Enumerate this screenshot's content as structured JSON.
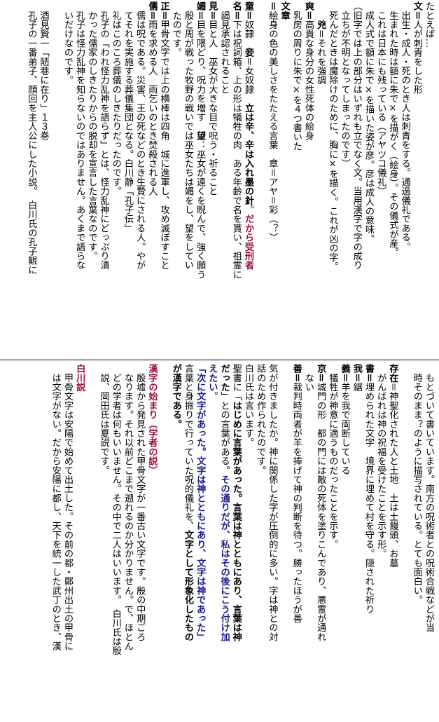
{
  "colors": {
    "accent_red": "#a0103c",
    "accent_blue": "#1c1c8c",
    "text": "#000000"
  },
  "top": [
    [
      {
        "t": "たとえば…"
      }
    ],
    [
      {
        "t": "文＝",
        "s": "b"
      },
      {
        "t": "人が刺青をした形"
      }
    ],
    [
      {
        "t": "　出生・成人・死のとき人は刺青をする。通過儀礼である。"
      }
    ],
    [
      {
        "t": "　生まれた時は額に朱で×を描がく（絵身）。その儀式が産。"
      }
    ],
    [
      {
        "t": "　これは日本にも残っている（アヤツコ儀礼）"
      }
    ],
    [
      {
        "t": "　成人式で額に朱で×を描いた姿が彦。彦は成人の意味。"
      }
    ],
    [
      {
        "t": "（旧字では上の部分はいずれも立でなく文。当用漢字で字の成り"
      }
    ],
    [
      {
        "t": "　立ちが不明となってしまったのです）"
      }
    ],
    [
      {
        "t": "　死んだときは魔除けのために、胸に×を描く。これが凶の字。"
      }
    ],
    [
      {
        "t": "　　兇",
        "s": "b"
      },
      {
        "t": "＝それを強調"
      }
    ],
    [
      {
        "t": "爽＝",
        "s": "b"
      },
      {
        "t": "高貴な身分の女性死体の絵身"
      }
    ],
    [
      {
        "t": "　乳房の周りに朱で×を４つ書いた"
      }
    ],
    [
      {
        "t": "文章",
        "s": "b"
      }
    ],
    [
      {
        "t": "＝",
        "s": "b"
      },
      {
        "t": "絵身の色の美しさをたたえる言葉　章＝アヤ＝彩（？）"
      }
    ],
    [
      {
        "t": ""
      }
    ],
    [
      {
        "t": "童＝",
        "s": "b"
      },
      {
        "t": "奴隷　"
      },
      {
        "t": "妾",
        "s": "b"
      },
      {
        "t": "＝女奴隷　"
      },
      {
        "t": "立は辛、辛は入れ墨の針",
        "s": "b"
      },
      {
        "t": "。"
      },
      {
        "t": "だから受刑者",
        "s": "red"
      }
    ],
    [
      {
        "t": "名＝",
        "s": "b"
      },
      {
        "t": "下は祝詞箱、上の形は犠牲の肉　ある年齢で名を貰い、祖霊に"
      }
    ],
    [
      {
        "t": "　謁見承認されること"
      }
    ],
    [
      {
        "t": "見＝",
        "s": "b"
      },
      {
        "t": "目と人　巫女が大きな目で呪う・祈ること"
      }
    ],
    [
      {
        "t": "媚＝",
        "s": "b"
      },
      {
        "t": "目を隈どり、呪力を増す　"
      },
      {
        "t": "望",
        "s": "b"
      },
      {
        "t": "：巫女が遠くを睨んで、強く願う"
      }
    ],
    [
      {
        "t": "　殷と周が戦った牧野の戦いでは巫女たちは媚をし、望をしてい"
      }
    ],
    [
      {
        "t": "　たのです。"
      }
    ],
    [
      {
        "t": "正＝",
        "s": "b"
      },
      {
        "t": "甲骨文字では上の横棒は四角　城に進軍し、攻め滅ぼすこと"
      }
    ],
    [
      {
        "t": "儒＝",
        "s": "b"
      },
      {
        "t": "雨を求める人　雨乞いのとき焚殺される人"
      }
    ],
    [
      {
        "t": "　儒は呪である。災害、王の死などのとき生贄にされる人。やが"
      }
    ],
    [
      {
        "t": "　てそれを実施する葬儀集団となる。白川静「孔子伝」"
      }
    ],
    [
      {
        "t": "　礼はこのころ葬儀のしきたりだったのです。"
      }
    ],
    [
      {
        "t": "　孔子の「われ怪力乱神を語らず」とは、怪力乱神にどっぷり漬"
      }
    ],
    [
      {
        "t": "　かった儒家のしきたりからの脱却を宣言した言葉なのです。"
      }
    ],
    [
      {
        "t": "　孔子は怪力乱神を知らないのではありません。あくまで語らな"
      }
    ],
    [
      {
        "t": "　いだけなのです。"
      }
    ],
    [
      {
        "t": ""
      }
    ],
    [
      {
        "t": "　酒見賢一「陋巷に在り」１３巻"
      }
    ],
    [
      {
        "t": "　孔子の一番弟子、顔回を主人公にした小説。　白川氏の孔子観に"
      }
    ]
  ],
  "bottom": [
    [
      {
        "t": "　もとづいて書いています。南方の呪術者との呪術合戦などが当"
      }
    ],
    [
      {
        "t": "　時そのまま？のように描写されている。とても面白い。"
      }
    ],
    [
      {
        "t": ""
      }
    ],
    [
      {
        "t": "存在",
        "s": "b"
      },
      {
        "t": "＝神聖化された人と土地　土は土饅頭、お墓"
      }
    ],
    [
      {
        "t": "　がんばれは神の祝福を受けたことを示す形。"
      }
    ],
    [
      {
        "t": "書＝",
        "s": "b"
      },
      {
        "t": "埋められた文字　境界に埋めて村を守る。隠された祈り"
      }
    ],
    [
      {
        "t": "我＝",
        "s": "b"
      },
      {
        "t": "鋸"
      }
    ],
    [
      {
        "t": "義＝",
        "s": "b"
      },
      {
        "t": "羊を我で両断している"
      }
    ],
    [
      {
        "t": "　犠牲が神意に適うものだったことを示す。"
      }
    ],
    [
      {
        "t": "京＝",
        "s": "b"
      },
      {
        "t": "城門の形　都の門には敵の死体を塗りこんであり、悪霊が通れ"
      }
    ],
    [
      {
        "t": "　ない"
      }
    ],
    [
      {
        "t": "善＝",
        "s": "b"
      },
      {
        "t": "裁判時両者が羊を捧げて神の判断を待つ。勝ったほうが善"
      }
    ],
    [
      {
        "t": ""
      }
    ],
    [
      {
        "t": "気が付きましたか。神に関係した字が圧倒的に多い。字は神との対"
      }
    ],
    [
      {
        "t": "話のため作られたのです。"
      }
    ],
    [
      {
        "t": "白川氏は言います。"
      }
    ],
    [
      {
        "t": "聖書に「"
      },
      {
        "t": "はじめに言葉があった。言葉は神とともにあり、言葉は神",
        "s": "b"
      }
    ],
    [
      {
        "t": "だった",
        "s": "b"
      },
      {
        "t": "」との言葉がある。"
      },
      {
        "t": "その通りだが、私はその後にこう付け加",
        "s": "blue"
      }
    ],
    [
      {
        "t": "えたい",
        "s": "blue"
      },
      {
        "t": "。"
      }
    ],
    [
      {
        "t": "「次に文字があった。文字は神とともにあり、文字は神であった」",
        "s": "blue"
      }
    ],
    [
      {
        "t": "言葉と身振りで行っていた呪的儀礼を、"
      },
      {
        "t": "文字として形象化したもの",
        "s": "b"
      }
    ],
    [
      {
        "t": "が漢字である。",
        "s": "b"
      }
    ],
    [
      {
        "t": ""
      }
    ],
    [
      {
        "t": "漢字の始まり（学者の説）",
        "s": "red"
      }
    ],
    [
      {
        "t": "　殷墟から発見された甲骨文字が一番古い文字です。殷の中期ごろ"
      }
    ],
    [
      {
        "t": "　なります。それ以前どこまで遡れるのか分かりません。で、ほとん"
      }
    ],
    [
      {
        "t": "　どの学者は何もいいません。その中で二人はいいます。　白川氏は殷"
      }
    ],
    [
      {
        "t": "　説、岡田氏は夏説です。"
      }
    ],
    [
      {
        "t": ""
      }
    ],
    [
      {
        "t": "白川説",
        "s": "red"
      }
    ],
    [
      {
        "t": "　甲骨文字は安陽で始めて出土した。その前の都・鄭州出土の甲骨に"
      }
    ],
    [
      {
        "t": "　は文字がない。だから安陽に都し、天下を統一した武丁のとき、漢"
      }
    ]
  ]
}
